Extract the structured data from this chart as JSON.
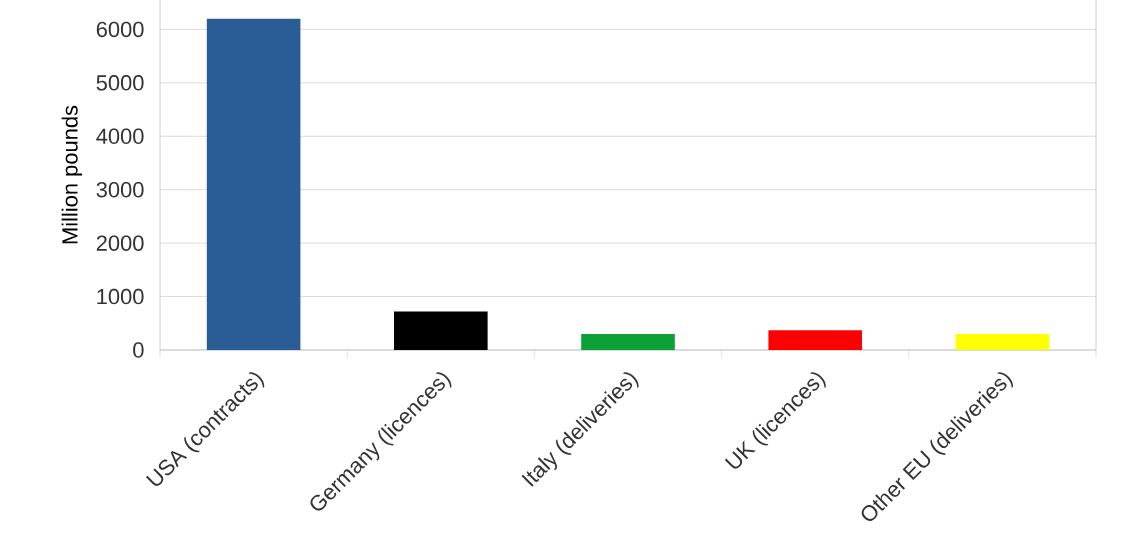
{
  "chart_data": {
    "type": "bar",
    "ylabel": "Million pounds",
    "categories": [
      "USA (contracts)",
      "Germany (licences)",
      "Italy (deliveries)",
      "UK (licences)",
      "Other EU (deliveries)"
    ],
    "values": [
      6200,
      720,
      300,
      370,
      300
    ],
    "colors": [
      "#2a5d96",
      "#000000",
      "#0ca136",
      "#ff0000",
      "#ffff00"
    ],
    "ylim": [
      0,
      6550
    ],
    "yticks": [
      0,
      1000,
      2000,
      3000,
      4000,
      5000,
      6000
    ],
    "grid": "y"
  }
}
